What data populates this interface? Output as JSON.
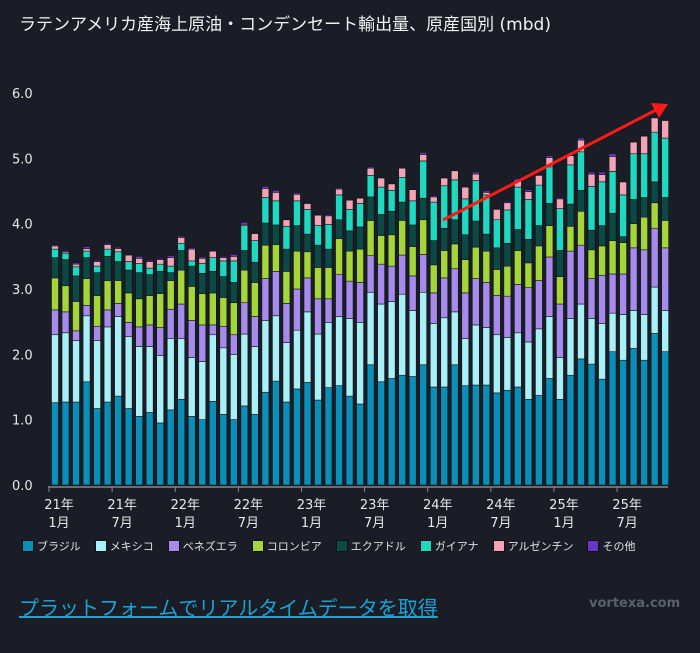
{
  "chart_data": {
    "type": "bar",
    "stacked": true,
    "title": "ラテンアメリカ産海上原油・コンデンセート輸出量、原産国別 (mbd)",
    "xlabel": "",
    "ylabel": "",
    "ylim": [
      0,
      6.0
    ],
    "yticks": [
      "0.0",
      "1.0",
      "2.0",
      "3.0",
      "4.0",
      "5.0",
      "6.0"
    ],
    "grid": false,
    "legend_position": "bottom",
    "x_tick_labels": [
      {
        "year": "21年",
        "month": "1月",
        "index": 0
      },
      {
        "year": "21年",
        "month": "7月",
        "index": 6
      },
      {
        "year": "22年",
        "month": "1月",
        "index": 12
      },
      {
        "year": "22年",
        "month": "7月",
        "index": 18
      },
      {
        "year": "23年",
        "month": "1月",
        "index": 24
      },
      {
        "year": "23年",
        "month": "7月",
        "index": 30
      },
      {
        "year": "24年",
        "month": "1月",
        "index": 36
      },
      {
        "year": "24年",
        "month": "7月",
        "index": 42
      },
      {
        "year": "25年",
        "month": "1月",
        "index": 48
      },
      {
        "year": "25年",
        "month": "7月",
        "index": 54
      }
    ],
    "categories_start": "2021-01",
    "categories_end": "2025-11",
    "series": [
      {
        "name": "ブラジル",
        "color": "#0a8fb8",
        "values": [
          1.26,
          1.27,
          1.27,
          1.58,
          1.17,
          1.27,
          1.36,
          1.17,
          1.05,
          1.11,
          0.95,
          1.15,
          1.31,
          1.05,
          1.0,
          1.28,
          1.08,
          1.0,
          1.21,
          1.08,
          1.42,
          1.59,
          1.27,
          1.47,
          1.57,
          1.3,
          1.49,
          1.52,
          1.36,
          1.24,
          1.84,
          1.58,
          1.63,
          1.68,
          1.66,
          1.84,
          1.5,
          1.5,
          1.84,
          1.52,
          1.53,
          1.53,
          1.41,
          1.45,
          1.5,
          1.31,
          1.37,
          1.63,
          1.31,
          1.68,
          1.93,
          1.85,
          1.62,
          2.04,
          1.91,
          2.09,
          1.91,
          2.32,
          2.04
        ]
      },
      {
        "name": "メキシコ",
        "color": "#a8f0f8",
        "values": [
          1.04,
          1.06,
          0.94,
          1.01,
          1.04,
          1.15,
          1.22,
          1.1,
          1.07,
          1.01,
          1.03,
          1.09,
          0.93,
          0.9,
          0.89,
          1.02,
          1.02,
          1.0,
          1.1,
          1.04,
          1.1,
          1.0,
          0.91,
          0.9,
          1.08,
          1.01,
          1.0,
          1.06,
          1.19,
          1.25,
          1.11,
          1.19,
          1.18,
          1.24,
          1.01,
          1.11,
          0.97,
          1.06,
          0.81,
          0.72,
          0.92,
          0.88,
          0.89,
          0.81,
          0.83,
          0.88,
          1.02,
          0.95,
          0.64,
          0.87,
          0.84,
          0.7,
          0.85,
          0.59,
          0.7,
          0.58,
          0.7,
          0.71,
          0.63
        ]
      },
      {
        "name": "ベネズエラ",
        "color": "#a78bec",
        "values": [
          0.38,
          0.32,
          0.15,
          0.16,
          0.22,
          0.26,
          0.2,
          0.22,
          0.3,
          0.33,
          0.43,
          0.45,
          0.53,
          0.57,
          0.56,
          0.15,
          0.33,
          0.3,
          0.48,
          0.46,
          0.64,
          0.68,
          0.6,
          0.63,
          0.52,
          0.54,
          0.36,
          0.64,
          0.57,
          0.61,
          0.56,
          0.61,
          0.54,
          0.6,
          0.53,
          0.58,
          0.47,
          0.61,
          0.66,
          0.7,
          0.71,
          0.69,
          0.6,
          0.63,
          0.74,
          0.83,
          0.74,
          0.91,
          0.82,
          1.03,
          0.9,
          0.61,
          0.74,
          0.6,
          0.62,
          0.96,
          0.99,
          0.9,
          0.96
        ]
      },
      {
        "name": "コロンビア",
        "color": "#a4d63a",
        "values": [
          0.49,
          0.4,
          0.45,
          0.41,
          0.47,
          0.45,
          0.35,
          0.45,
          0.43,
          0.45,
          0.52,
          0.44,
          0.52,
          0.52,
          0.48,
          0.49,
          0.44,
          0.49,
          0.5,
          0.52,
          0.51,
          0.41,
          0.49,
          0.58,
          0.4,
          0.48,
          0.48,
          0.55,
          0.46,
          0.51,
          0.54,
          0.44,
          0.48,
          0.53,
          0.45,
          0.53,
          0.43,
          0.42,
          0.38,
          0.51,
          0.48,
          0.48,
          0.4,
          0.46,
          0.52,
          0.38,
          0.53,
          0.48,
          0.42,
          0.38,
          0.52,
          0.44,
          0.45,
          0.51,
          0.48,
          0.37,
          0.5,
          0.39,
          0.42
        ]
      },
      {
        "name": "エクアドル",
        "color": "#0b4a44",
        "values": [
          0.31,
          0.4,
          0.39,
          0.32,
          0.35,
          0.37,
          0.29,
          0.35,
          0.4,
          0.32,
          0.34,
          0.12,
          0.3,
          0.31,
          0.31,
          0.33,
          0.32,
          0.31,
          0.3,
          0.31,
          0.34,
          0.3,
          0.34,
          0.39,
          0.27,
          0.34,
          0.28,
          0.29,
          0.31,
          0.34,
          0.36,
          0.32,
          0.36,
          0.28,
          0.33,
          0.33,
          0.37,
          0.34,
          0.37,
          0.38,
          0.4,
          0.26,
          0.33,
          0.35,
          0.32,
          0.36,
          0.31,
          0.34,
          0.4,
          0.34,
          0.32,
          0.3,
          0.31,
          0.42,
          0.09,
          0.37,
          0.3,
          0.32,
          0.35
        ]
      },
      {
        "name": "ガイアナ",
        "color": "#1ed8c0",
        "values": [
          0.13,
          0.1,
          0.14,
          0.1,
          0.1,
          0.11,
          0.15,
          0.13,
          0.14,
          0.1,
          0.11,
          0.1,
          0.11,
          0.08,
          0.15,
          0.21,
          0.24,
          0.33,
          0.38,
          0.33,
          0.39,
          0.37,
          0.35,
          0.38,
          0.38,
          0.3,
          0.38,
          0.38,
          0.33,
          0.36,
          0.33,
          0.42,
          0.32,
          0.38,
          0.37,
          0.57,
          0.59,
          0.65,
          0.61,
          0.55,
          0.62,
          0.6,
          0.43,
          0.51,
          0.65,
          0.61,
          0.62,
          0.56,
          0.64,
          0.6,
          0.59,
          0.67,
          0.67,
          0.64,
          0.64,
          0.7,
          0.67,
          0.76,
          0.91
        ]
      },
      {
        "name": "アルゼンチン",
        "color": "#f4a3b6",
        "values": [
          0.05,
          0.02,
          0.04,
          0.04,
          0.07,
          0.07,
          0.05,
          0.1,
          0.08,
          0.1,
          0.07,
          0.13,
          0.09,
          0.18,
          0.08,
          0.1,
          0.05,
          0.07,
          0.02,
          0.11,
          0.14,
          0.13,
          0.1,
          0.1,
          0.09,
          0.16,
          0.13,
          0.09,
          0.14,
          0.08,
          0.11,
          0.14,
          0.1,
          0.14,
          0.17,
          0.1,
          0.08,
          0.12,
          0.14,
          0.18,
          0.1,
          0.04,
          0.16,
          0.11,
          0.11,
          0.12,
          0.15,
          0.14,
          0.15,
          0.14,
          0.18,
          0.19,
          0.11,
          0.23,
          0.2,
          0.18,
          0.27,
          0.22,
          0.27
        ]
      },
      {
        "name": "その他",
        "color": "#6a35c8",
        "values": [
          0.02,
          0.02,
          0.02,
          0.03,
          0.02,
          0.02,
          0.02,
          0.01,
          0.03,
          0.02,
          0.02,
          0.03,
          0.02,
          0.02,
          0.02,
          0.01,
          0.02,
          0.03,
          0.03,
          0.01,
          0.03,
          0.03,
          0.01,
          0.02,
          0.01,
          0.01,
          0.02,
          0.02,
          0.01,
          0.01,
          0.02,
          0.01,
          0.01,
          0.01,
          0.01,
          0.03,
          0.02,
          0.01,
          0.01,
          0.01,
          0.03,
          0.02,
          0.01,
          0.02,
          0.02,
          0.03,
          0.01,
          0.03,
          0.02,
          0.01,
          0.03,
          0.03,
          0.04,
          0.04,
          0.01,
          0.01,
          0.01,
          0.01,
          0.01
        ]
      }
    ],
    "annotation": {
      "type": "trend-arrow",
      "color": "#ff1a1a"
    }
  },
  "footer": {
    "cta_link": "プラットフォームでリアルタイムデータを取得",
    "brand": "vortexa.com"
  }
}
